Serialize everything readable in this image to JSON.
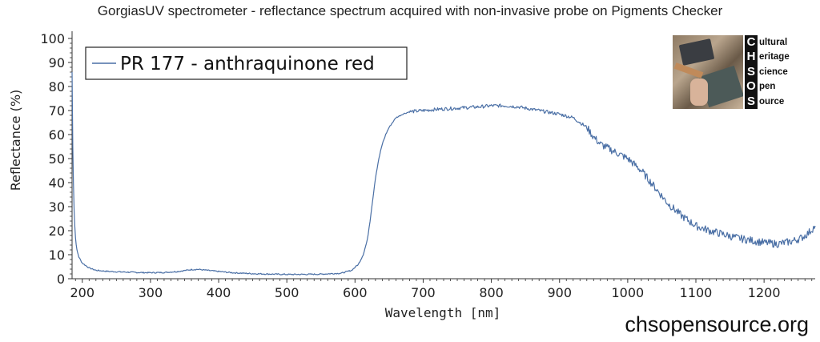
{
  "title": "GorgiasUV spectrometer - reflectance spectrum acquired with non-invasive probe on Pigments Checker",
  "website": "chsopensource.org",
  "logo": {
    "letters": [
      "C",
      "H",
      "S",
      "O",
      "S"
    ],
    "words": [
      "ultural",
      "eritage",
      "cience",
      "pen",
      "ource"
    ]
  },
  "chart_data": {
    "type": "line",
    "xlabel": "Wavelength [nm]",
    "ylabel": "Reflectance (%)",
    "xlim": [
      185,
      1275
    ],
    "ylim": [
      0,
      103
    ],
    "xticks": [
      200,
      300,
      400,
      500,
      600,
      700,
      800,
      900,
      1000,
      1100,
      1200
    ],
    "yticks": [
      0,
      10,
      20,
      30,
      40,
      50,
      60,
      70,
      80,
      90,
      100
    ],
    "grid": false,
    "legend_position": "top-left",
    "series": [
      {
        "name": "PR 177 - anthraquinone red",
        "color": "#4a6fa5",
        "x": [
          185,
          186,
          187,
          188,
          189,
          190,
          192,
          195,
          200,
          210,
          220,
          240,
          260,
          280,
          300,
          320,
          340,
          360,
          370,
          380,
          400,
          420,
          450,
          480,
          500,
          520,
          550,
          580,
          595,
          605,
          612,
          618,
          622,
          626,
          630,
          635,
          640,
          645,
          650,
          655,
          660,
          670,
          680,
          700,
          720,
          750,
          780,
          800,
          820,
          840,
          860,
          880,
          900,
          920,
          940,
          950,
          960,
          980,
          1000,
          1020,
          1040,
          1060,
          1080,
          1100,
          1120,
          1140,
          1160,
          1180,
          1200,
          1220,
          1240,
          1255,
          1265,
          1275
        ],
        "y": [
          86,
          55,
          40,
          28,
          22,
          17,
          12,
          9,
          6.5,
          4.5,
          3.5,
          3.0,
          2.8,
          2.6,
          2.5,
          2.6,
          3.0,
          3.8,
          3.9,
          3.6,
          3.0,
          2.5,
          2.1,
          1.9,
          1.8,
          1.8,
          1.9,
          2.3,
          3.5,
          6,
          10,
          16,
          24,
          33,
          42,
          50,
          56,
          60,
          63,
          65,
          67,
          68.5,
          69.5,
          70,
          70.5,
          71,
          71.5,
          72,
          72,
          71.5,
          70.5,
          69.5,
          68.5,
          67,
          63,
          59,
          56,
          53,
          50,
          45,
          38,
          31,
          26,
          22,
          20,
          18.5,
          17,
          16,
          15,
          14.5,
          15.5,
          17,
          19,
          22
        ]
      }
    ]
  }
}
